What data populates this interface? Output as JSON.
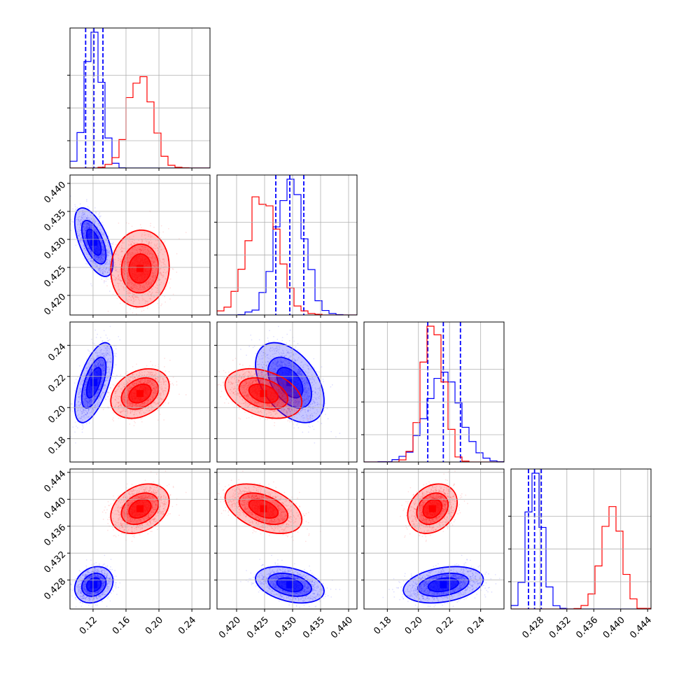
{
  "chart_data": {
    "type": "corner",
    "title": "",
    "parameters": [
      "",
      "",
      "",
      ""
    ],
    "ranges": [
      [
        0.092,
        0.262
      ],
      [
        0.4165,
        0.4415
      ],
      [
        0.165,
        0.255
      ],
      [
        0.4237,
        0.4445
      ]
    ],
    "ticks": [
      [
        "0.12",
        "0.16",
        "0.20",
        "0.24"
      ],
      [
        "0.420",
        "0.425",
        "0.430",
        "0.435",
        "0.440"
      ],
      [
        "0.18",
        "0.20",
        "0.22",
        "0.24"
      ],
      [
        "0.428",
        "0.432",
        "0.436",
        "0.440",
        "0.444"
      ]
    ],
    "grid": true,
    "series": [
      {
        "color": "#0000ff",
        "mean": [
          0.121,
          0.4295,
          0.216,
          0.4273
        ],
        "std": [
          0.0095,
          0.0025,
          0.0105,
          0.0011
        ],
        "corr": [
          [
            1.0,
            -0.6,
            0.6,
            0.2
          ],
          [
            -0.6,
            1.0,
            -0.45,
            -0.35
          ],
          [
            0.6,
            -0.45,
            1.0,
            0.3
          ],
          [
            0.2,
            -0.35,
            0.3,
            1.0
          ]
        ],
        "quantiles": [
          [
            0.111,
            0.121,
            0.132
          ],
          [
            0.427,
            0.4295,
            0.432
          ],
          [
            0.206,
            0.216,
            0.227
          ],
          [
            0.4263,
            0.4272,
            0.4282
          ]
        ]
      },
      {
        "color": "#ff0000",
        "mean": [
          0.177,
          0.4248,
          0.209,
          0.4386
        ],
        "std": [
          0.0145,
          0.0028,
          0.0065,
          0.0015
        ],
        "corr": [
          [
            1.0,
            0.05,
            0.3,
            0.3
          ],
          [
            0.05,
            1.0,
            -0.35,
            -0.45
          ],
          [
            0.3,
            -0.35,
            1.0,
            0.25
          ],
          [
            0.3,
            -0.45,
            0.25,
            1.0
          ]
        ],
        "quantiles": null
      }
    ]
  }
}
